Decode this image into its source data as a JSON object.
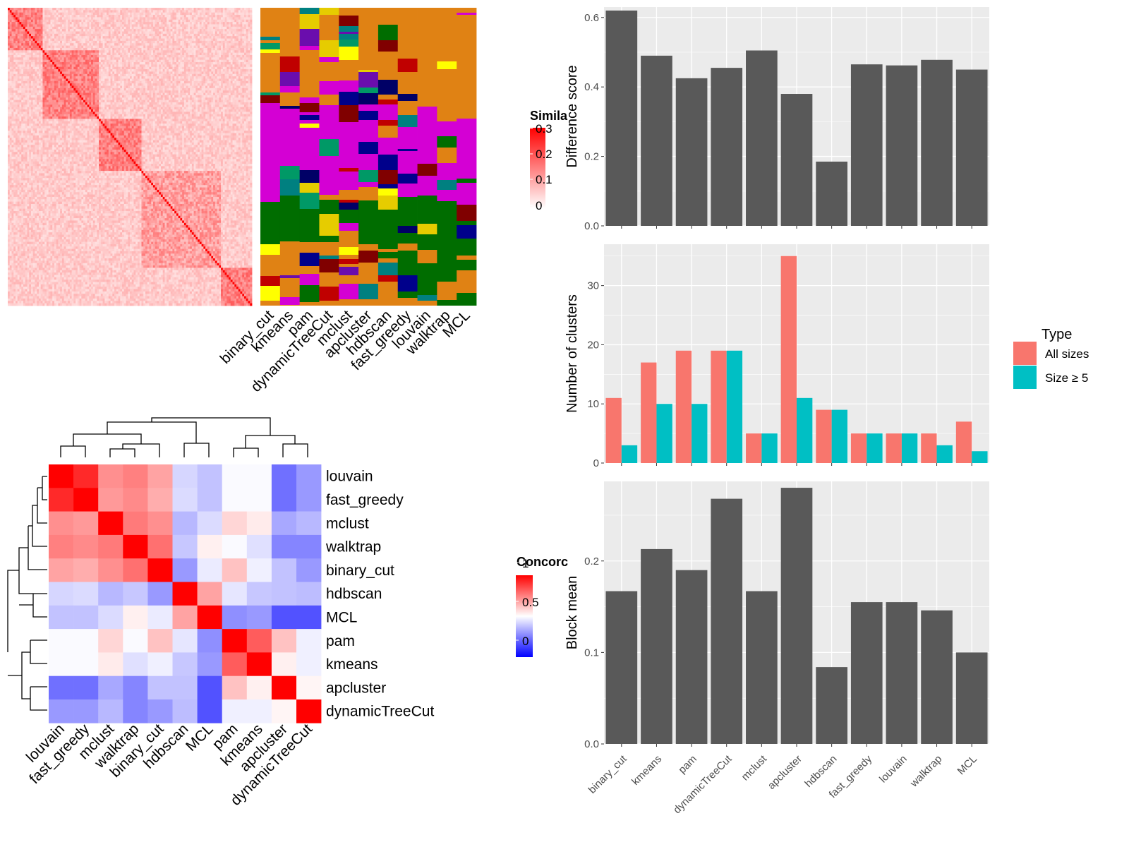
{
  "chart_data": [
    {
      "type": "heatmap",
      "variant": "similarity-matrix-with-cluster-labels",
      "legend": {
        "title": "Similarity",
        "visible_title": "Simila",
        "ticks": [
          "0.3",
          "0.2",
          "0.1",
          "0"
        ],
        "colors": [
          "#ffffff",
          "#ff0000"
        ]
      },
      "block_sizes": [
        18,
        29,
        22,
        41,
        16
      ],
      "label_columns": [
        "binary_cut",
        "kmeans",
        "pam",
        "dynamicTreeCut",
        "mclust",
        "apcluster",
        "hdbscan",
        "fast_greedy",
        "louvain",
        "walktrap",
        "MCL"
      ],
      "label_palette": [
        "#D400D4",
        "#E08214",
        "#E6CC00",
        "#008080",
        "#000066",
        "#C00000",
        "#006D00",
        "#6A0DAD",
        "#FFFF00",
        "#00008B",
        "#009966",
        "#800000"
      ]
    },
    {
      "type": "heatmap",
      "variant": "concordance-matrix",
      "legend": {
        "title": "Concordance",
        "visible_title": "Concorc",
        "ticks": [
          "1",
          "0.5",
          "0"
        ],
        "colors": [
          "#0000ff",
          "#ffffff",
          "#ff0000"
        ]
      },
      "rows": [
        "louvain",
        "fast_greedy",
        "mclust",
        "walktrap",
        "binary_cut",
        "hdbscan",
        "MCL",
        "pam",
        "kmeans",
        "apcluster",
        "dynamicTreeCut"
      ],
      "columns": [
        "louvain",
        "fast_greedy",
        "mclust",
        "walktrap",
        "binary_cut",
        "hdbscan",
        "MCL",
        "pam",
        "kmeans",
        "apcluster",
        "dynamicTreeCut"
      ],
      "values": [
        [
          1.0,
          0.92,
          0.72,
          0.75,
          0.68,
          0.42,
          0.38,
          0.49,
          0.49,
          0.22,
          0.3
        ],
        [
          0.92,
          1.0,
          0.7,
          0.73,
          0.66,
          0.43,
          0.38,
          0.49,
          0.49,
          0.22,
          0.3
        ],
        [
          0.72,
          0.7,
          1.0,
          0.76,
          0.72,
          0.36,
          0.43,
          0.58,
          0.54,
          0.33,
          0.36
        ],
        [
          0.75,
          0.73,
          0.76,
          1.0,
          0.78,
          0.39,
          0.53,
          0.49,
          0.44,
          0.26,
          0.26
        ],
        [
          0.68,
          0.66,
          0.72,
          0.78,
          1.0,
          0.3,
          0.46,
          0.62,
          0.47,
          0.38,
          0.3
        ],
        [
          0.42,
          0.43,
          0.36,
          0.39,
          0.3,
          1.0,
          0.68,
          0.45,
          0.39,
          0.38,
          0.37
        ],
        [
          0.38,
          0.38,
          0.43,
          0.53,
          0.46,
          0.68,
          1.0,
          0.28,
          0.3,
          0.16,
          0.16
        ],
        [
          0.49,
          0.49,
          0.58,
          0.49,
          0.62,
          0.45,
          0.28,
          1.0,
          0.82,
          0.62,
          0.47
        ],
        [
          0.49,
          0.49,
          0.54,
          0.44,
          0.47,
          0.39,
          0.3,
          0.82,
          1.0,
          0.53,
          0.47
        ],
        [
          0.22,
          0.22,
          0.33,
          0.26,
          0.38,
          0.38,
          0.16,
          0.62,
          0.53,
          1.0,
          0.52
        ],
        [
          0.3,
          0.3,
          0.36,
          0.26,
          0.3,
          0.37,
          0.16,
          0.47,
          0.47,
          0.52,
          1.0
        ]
      ]
    },
    {
      "type": "bar",
      "categories": [
        "binary_cut",
        "kmeans",
        "pam",
        "dynamicTreeCut",
        "mclust",
        "apcluster",
        "hdbscan",
        "fast_greedy",
        "louvain",
        "walktrap",
        "MCL"
      ],
      "values": [
        0.62,
        0.49,
        0.425,
        0.455,
        0.505,
        0.38,
        0.185,
        0.465,
        0.462,
        0.478,
        0.45
      ],
      "ylabel": "Difference score",
      "ylim": [
        0,
        0.63
      ],
      "yticks": [
        "0.0",
        "0.2",
        "0.4",
        "0.6"
      ],
      "grid": true
    },
    {
      "type": "bar",
      "categories": [
        "binary_cut",
        "kmeans",
        "pam",
        "dynamicTreeCut",
        "mclust",
        "apcluster",
        "hdbscan",
        "fast_greedy",
        "louvain",
        "walktrap",
        "MCL"
      ],
      "series": [
        {
          "name": "All sizes",
          "color": "#F8766D",
          "values": [
            11,
            17,
            19,
            19,
            5,
            35,
            9,
            5,
            5,
            5,
            7
          ]
        },
        {
          "name": "Size ≥ 5",
          "color": "#00BFC4",
          "values": [
            3,
            10,
            10,
            19,
            5,
            11,
            9,
            5,
            5,
            3,
            2
          ]
        }
      ],
      "ylabel": "Number of clusters",
      "ylim": [
        0,
        37
      ],
      "yticks": [
        "0",
        "10",
        "20",
        "30"
      ],
      "legend": {
        "title": "Type",
        "position": "right"
      },
      "grid": true
    },
    {
      "type": "bar",
      "categories": [
        "binary_cut",
        "kmeans",
        "pam",
        "dynamicTreeCut",
        "mclust",
        "apcluster",
        "hdbscan",
        "fast_greedy",
        "louvain",
        "walktrap",
        "MCL"
      ],
      "values": [
        0.167,
        0.213,
        0.19,
        0.268,
        0.167,
        0.28,
        0.084,
        0.155,
        0.155,
        0.146,
        0.1
      ],
      "ylabel": "Block mean",
      "ylim": [
        0,
        0.287
      ],
      "yticks": [
        "0.0",
        "0.1",
        "0.2"
      ],
      "grid": true
    }
  ]
}
